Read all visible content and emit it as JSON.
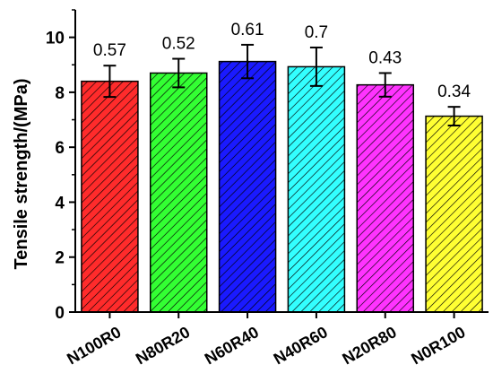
{
  "chart_data": {
    "type": "bar",
    "title": "",
    "xlabel": "",
    "ylabel": "Tensile strength/(MPa)",
    "ylim": [
      0,
      11
    ],
    "yticks": [
      0,
      2,
      4,
      6,
      8,
      10
    ],
    "grid": false,
    "categories": [
      "N100R0",
      "N80R20",
      "N60R40",
      "N40R60",
      "N20R80",
      "N0R100"
    ],
    "values": [
      8.4,
      8.7,
      9.12,
      8.93,
      8.27,
      7.13
    ],
    "errors": [
      0.57,
      0.52,
      0.61,
      0.7,
      0.43,
      0.34
    ],
    "labels": [
      "0.57",
      "0.52",
      "0.61",
      "0.7",
      "0.43",
      "0.34"
    ],
    "colors": [
      "#ff2b2b",
      "#33ff33",
      "#1a1aff",
      "#33ffff",
      "#ff33ff",
      "#ffff33"
    ],
    "fill_pattern": "diagonal-hatch"
  }
}
